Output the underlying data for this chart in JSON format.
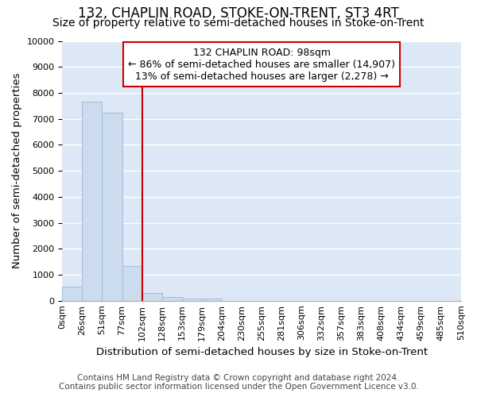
{
  "title": "132, CHAPLIN ROAD, STOKE-ON-TRENT, ST3 4RT",
  "subtitle": "Size of property relative to semi-detached houses in Stoke-on-Trent",
  "xlabel": "Distribution of semi-detached houses by size in Stoke-on-Trent",
  "ylabel": "Number of semi-detached properties",
  "footer_line1": "Contains HM Land Registry data © Crown copyright and database right 2024.",
  "footer_line2": "Contains public sector information licensed under the Open Government Licence v3.0.",
  "bin_labels": [
    "0sqm",
    "26sqm",
    "51sqm",
    "77sqm",
    "102sqm",
    "128sqm",
    "153sqm",
    "179sqm",
    "204sqm",
    "230sqm",
    "255sqm",
    "281sqm",
    "306sqm",
    "332sqm",
    "357sqm",
    "383sqm",
    "408sqm",
    "434sqm",
    "459sqm",
    "485sqm",
    "510sqm"
  ],
  "bar_values": [
    550,
    7650,
    7250,
    1350,
    300,
    150,
    100,
    80,
    0,
    0,
    0,
    0,
    0,
    0,
    0,
    0,
    0,
    0,
    0,
    0
  ],
  "bar_color": "#ccdcee",
  "bar_edge_color": "#9ab8d8",
  "vline_color": "#cc0000",
  "vline_x": 4.0,
  "annotation_text_line1": "132 CHAPLIN ROAD: 98sqm",
  "annotation_text_line2": "← 86% of semi-detached houses are smaller (14,907)",
  "annotation_text_line3": "13% of semi-detached houses are larger (2,278) →",
  "annotation_box_color": "#ffffff",
  "annotation_box_edge_color": "#cc0000",
  "ylim": [
    0,
    10000
  ],
  "yticks": [
    0,
    1000,
    2000,
    3000,
    4000,
    5000,
    6000,
    7000,
    8000,
    9000,
    10000
  ],
  "bg_color": "#dce8f5",
  "grid_color": "#ffffff",
  "title_fontsize": 12,
  "subtitle_fontsize": 10,
  "axis_label_fontsize": 9.5,
  "tick_fontsize": 8,
  "footer_fontsize": 7.5,
  "annotation_fontsize": 9
}
